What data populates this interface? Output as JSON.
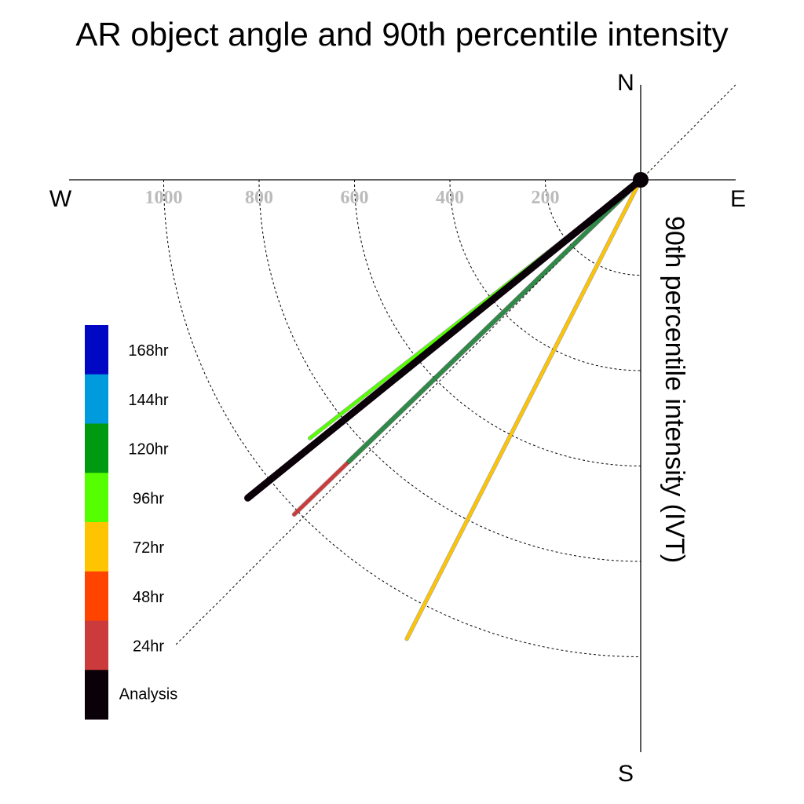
{
  "chart_data": {
    "type": "polar-vector",
    "title": "AR object angle and 90th percentile intensity",
    "radial_axis_label": "90th percentile intensity (IVT)",
    "compass": {
      "north": "N",
      "south": "S",
      "east": "E",
      "west": "W"
    },
    "rings": [
      200,
      400,
      600,
      800,
      1000
    ],
    "ring_labels": [
      "200",
      "400",
      "600",
      "800",
      "1000"
    ],
    "radial_max": 1200,
    "series": [
      {
        "name": "72hr",
        "angle_deg": 207,
        "intensity": 1080,
        "color": "#ffc400"
      },
      {
        "name": "24hr",
        "angle_deg": 226,
        "intensity": 1010,
        "color": "#cc3b3b"
      },
      {
        "name": "120hr",
        "angle_deg": 226,
        "intensity": 850,
        "color": "#2e8b47"
      },
      {
        "name": "96hr",
        "angle_deg": 232,
        "intensity": 880,
        "color": "#55ff00"
      },
      {
        "name": "Analysis",
        "angle_deg": 231,
        "intensity": 1060,
        "color": "#0a0008"
      }
    ],
    "legend": [
      {
        "label": "168hr",
        "color": "#0008c4"
      },
      {
        "label": "144hr",
        "color": "#009bdc"
      },
      {
        "label": "120hr",
        "color": "#009a10"
      },
      {
        "label": "96hr",
        "color": "#55ff00"
      },
      {
        "label": "72hr",
        "color": "#ffc400"
      },
      {
        "label": "48hr",
        "color": "#ff4400"
      },
      {
        "label": "24hr",
        "color": "#cc3b3b"
      },
      {
        "label": "Analysis",
        "color": "#0a0008"
      }
    ]
  }
}
